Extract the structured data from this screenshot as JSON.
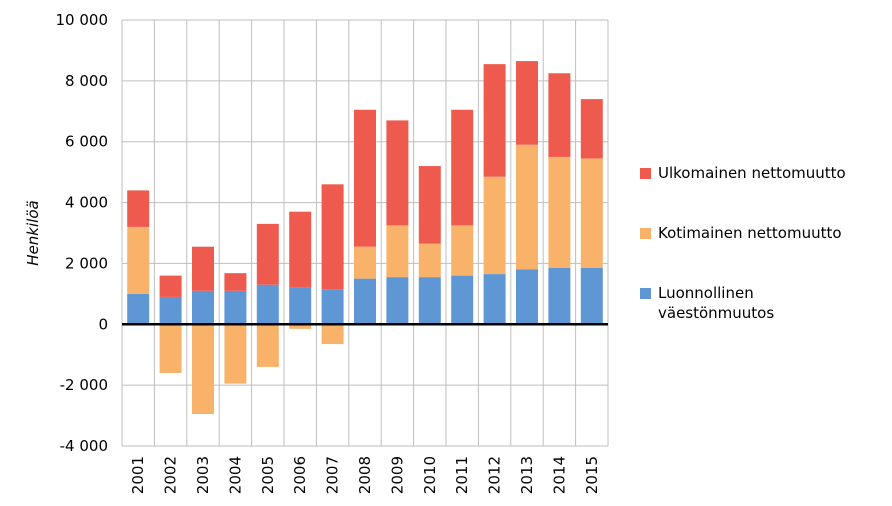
{
  "chart_data": {
    "type": "stacked_bar",
    "y_label": "Henkilöä",
    "categories": [
      "2001",
      "2002",
      "2003",
      "2004",
      "2005",
      "2006",
      "2007",
      "2008",
      "2009",
      "2010",
      "2011",
      "2012",
      "2013",
      "2014",
      "2015"
    ],
    "series": [
      {
        "name": "Luonnollinen väestönmuutos",
        "color": "#5f96d4",
        "values": [
          1000,
          900,
          1100,
          1100,
          1300,
          1200,
          1150,
          1500,
          1550,
          1550,
          1600,
          1650,
          1800,
          1850,
          1850
        ]
      },
      {
        "name": "Kotimainen nettomuutto",
        "color": "#f9b26a",
        "values": [
          2200,
          -1600,
          -2950,
          -1950,
          -1400,
          -150,
          -650,
          1050,
          1700,
          1100,
          1650,
          3200,
          4100,
          3650,
          3600
        ]
      },
      {
        "name": "Ulkomainen nettomuutto",
        "color": "#ee5a4e",
        "values": [
          1200,
          700,
          1450,
          580,
          2000,
          2500,
          3450,
          4500,
          3450,
          2550,
          3800,
          3700,
          2750,
          2750,
          1950
        ]
      }
    ],
    "ylim": [
      -4000,
      10000
    ],
    "yticks": [
      {
        "value": -4000,
        "label": "-4 000"
      },
      {
        "value": -2000,
        "label": "-2 000"
      },
      0,
      {
        "value": 2000,
        "label": "2 000"
      },
      {
        "value": 4000,
        "label": "4 000"
      },
      {
        "value": 6000,
        "label": "6 000"
      },
      {
        "value": 8000,
        "label": "8 000"
      },
      {
        "value": 10000,
        "label": "10 000"
      }
    ],
    "grid": true,
    "legend": "right"
  }
}
